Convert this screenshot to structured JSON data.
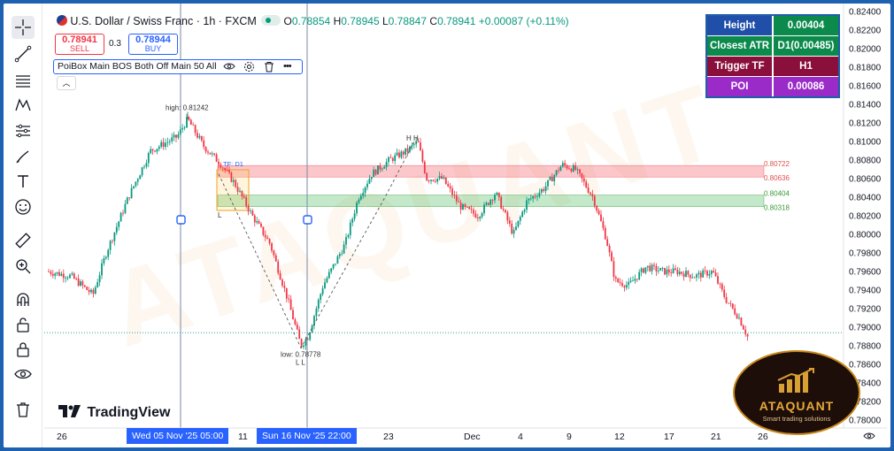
{
  "header": {
    "symbol": "U.S. Dollar / Swiss Franc · 1h · FXCM",
    "open_label": "O",
    "open": "0.78854",
    "high_label": "H",
    "high": "0.78945",
    "low_label": "L",
    "low": "0.78847",
    "close_label": "C",
    "close": "0.78941",
    "change": "+0.00087 (+0.11%)"
  },
  "trade": {
    "sell_price": "0.78941",
    "sell_label": "SELL",
    "spread": "0.3",
    "buy_price": "0.78944",
    "buy_label": "BUY"
  },
  "indicator": {
    "name": "PoiBox Main BOS Both Off Main 50 All"
  },
  "info_table": {
    "rows": [
      {
        "key": "Height",
        "value": "0.00404"
      },
      {
        "key": "Closest ATR",
        "value": "D1(0.00485)"
      },
      {
        "key": "Trigger TF",
        "value": "H1"
      },
      {
        "key": "POI",
        "value": "0.00086"
      }
    ],
    "colors": {
      "blue": "#1f4fa8",
      "green": "#0b8a4c",
      "maroon": "#8a0f3a",
      "purple": "#9a2bc9"
    }
  },
  "annotations": {
    "high_label": "high: 0.81242",
    "low_label": "low: 0.78778",
    "tf_label": "TF: D1",
    "hh_label": "H H",
    "ll_label": "L L",
    "red_zone_top": "0.80722",
    "red_zone_bottom": "0.80636",
    "green_zone_top": "0.80404",
    "green_zone_bottom": "0.80318",
    "l_marker": "L"
  },
  "price_axis": {
    "ticks": [
      "0.82400",
      "0.82200",
      "0.82000",
      "0.81800",
      "0.81600",
      "0.81400",
      "0.81200",
      "0.81000",
      "0.80800",
      "0.80600",
      "0.80400",
      "0.80200",
      "0.80000",
      "0.79800",
      "0.79600",
      "0.79400",
      "0.79200",
      "0.79000",
      "0.78800",
      "0.78600",
      "0.78400",
      "0.78200",
      "0.78000"
    ],
    "current": "0.78941"
  },
  "time_axis": {
    "labels": [
      "26",
      "11",
      "23",
      "Dec",
      "4",
      "9",
      "12",
      "17",
      "21",
      "26"
    ],
    "highlight_1": "Wed 05 Nov '25   05:00",
    "highlight_2": "Sun 16 Nov '25   22:00"
  },
  "branding": {
    "tradingview": "TradingView",
    "watermark": "ATAQUANT",
    "badge_title": "ATAQUANT",
    "badge_subtitle": "Smart trading solutions"
  },
  "colors": {
    "up": "#089981",
    "down": "#f23645",
    "accent": "#2962ff"
  },
  "toolbar_icons": [
    "crosshair-icon",
    "trend-line-icon",
    "fib-icon",
    "pattern-icon",
    "measure-icon",
    "brush-icon",
    "text-icon",
    "emoji-icon",
    "ruler-icon",
    "zoom-icon",
    "magnet-icon",
    "lock-icon",
    "eye-icon",
    "trash-icon"
  ]
}
